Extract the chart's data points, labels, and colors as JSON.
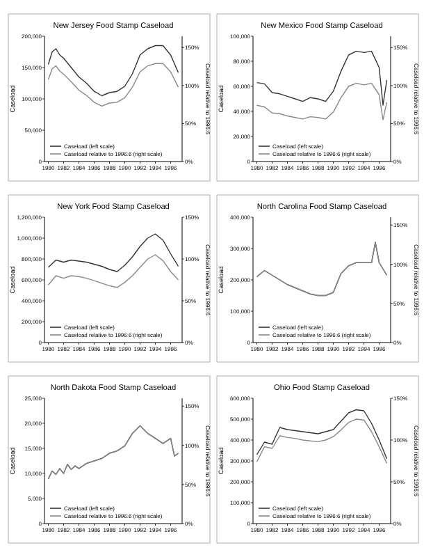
{
  "chart_data": [
    {
      "type": "line",
      "title": "New Jersey Food Stamp Caseload",
      "ylabel": "Caseload",
      "y2label": "Caseload relative to 1996:6",
      "legend": "bottom left",
      "xlim": [
        1979.5,
        1997.5
      ],
      "xticks": [
        1980,
        1982,
        1984,
        1986,
        1988,
        1990,
        1992,
        1994,
        1996
      ],
      "ylim": [
        0,
        200000
      ],
      "yticks": [
        {
          "value": 0,
          "label": "0"
        },
        {
          "value": 50000,
          "label": "50,000"
        },
        {
          "value": 100000,
          "label": "100,000"
        },
        {
          "value": 150000,
          "label": "150,000"
        },
        {
          "value": 200000,
          "label": "200,000"
        }
      ],
      "y2lim": [
        0,
        165
      ],
      "y2ticks": [
        {
          "value": 0,
          "label": "0%"
        },
        {
          "value": 50,
          "label": "50%"
        },
        {
          "value": 100,
          "label": "100%"
        },
        {
          "value": 150,
          "label": "150%"
        }
      ],
      "series": [
        {
          "name": "Caseload (left scale)",
          "color": "#333333",
          "x": [
            1980,
            1980.5,
            1981,
            1981.5,
            1982,
            1983,
            1984,
            1985,
            1986,
            1987,
            1988,
            1989,
            1990,
            1991,
            1992,
            1993,
            1994,
            1995,
            1996,
            1997
          ],
          "values": [
            155000,
            175000,
            180000,
            170000,
            165000,
            150000,
            135000,
            125000,
            112000,
            105000,
            110000,
            112000,
            120000,
            140000,
            170000,
            180000,
            185000,
            185000,
            170000,
            142000
          ]
        },
        {
          "name": "Caseload relative to 1996:6 (right scale)",
          "axis": "y2",
          "color": "#888888",
          "x": [
            1980,
            1980.5,
            1981,
            1981.5,
            1982,
            1983,
            1984,
            1985,
            1986,
            1987,
            1988,
            1989,
            1990,
            1991,
            1992,
            1993,
            1994,
            1995,
            1996,
            1997
          ],
          "values": [
            108,
            122,
            126,
            119,
            115,
            105,
            94,
            87,
            78,
            73,
            77,
            78,
            84,
            98,
            118,
            126,
            129,
            129,
            118,
            98
          ]
        }
      ]
    },
    {
      "type": "line",
      "title": "New Mexico Food Stamp Caseload",
      "ylabel": "Caseload",
      "y2label": "Caseload relative to 1996:6",
      "legend": "bottom left",
      "xlim": [
        1979.5,
        1997.5
      ],
      "xticks": [
        1980,
        1982,
        1984,
        1986,
        1988,
        1990,
        1992,
        1994,
        1996
      ],
      "ylim": [
        0,
        100000
      ],
      "yticks": [
        {
          "value": 0,
          "label": "0"
        },
        {
          "value": 20000,
          "label": "20,000"
        },
        {
          "value": 40000,
          "label": "40,000"
        },
        {
          "value": 60000,
          "label": "60,000"
        },
        {
          "value": 80000,
          "label": "80,000"
        },
        {
          "value": 100000,
          "label": "100,000"
        }
      ],
      "y2lim": [
        0,
        165
      ],
      "y2ticks": [
        {
          "value": 0,
          "label": "0%"
        },
        {
          "value": 50,
          "label": "50%"
        },
        {
          "value": 100,
          "label": "100%"
        },
        {
          "value": 150,
          "label": "150%"
        }
      ],
      "series": [
        {
          "name": "Caseload (left scale)",
          "color": "#333333",
          "x": [
            1980,
            1981,
            1982,
            1983,
            1984,
            1985,
            1986,
            1987,
            1988,
            1989,
            1990,
            1991,
            1992,
            1993,
            1994,
            1995,
            1996,
            1996.5,
            1997
          ],
          "values": [
            63000,
            62000,
            55000,
            54000,
            52000,
            50000,
            48000,
            51000,
            50000,
            48000,
            56000,
            72000,
            85000,
            88000,
            87000,
            88000,
            75000,
            45000,
            65000
          ]
        },
        {
          "name": "Caseload relative to 1996:6 (right scale)",
          "axis": "y2",
          "color": "#888888",
          "x": [
            1980,
            1981,
            1982,
            1983,
            1984,
            1985,
            1986,
            1987,
            1988,
            1989,
            1990,
            1991,
            1992,
            1993,
            1994,
            1995,
            1996,
            1996.5,
            1997
          ],
          "values": [
            74,
            72,
            64,
            63,
            60,
            58,
            56,
            59,
            58,
            56,
            65,
            84,
            99,
            103,
            101,
            103,
            88,
            55,
            78
          ]
        }
      ]
    },
    {
      "type": "line",
      "title": "New York Food Stamp Caseload",
      "ylabel": "Caseload",
      "y2label": "Caseload relative to 1996:6",
      "legend": "bottom left",
      "xlim": [
        1979.5,
        1997.5
      ],
      "xticks": [
        1980,
        1982,
        1984,
        1986,
        1988,
        1990,
        1992,
        1994,
        1996
      ],
      "ylim": [
        0,
        1200000
      ],
      "yticks": [
        {
          "value": 0,
          "label": "0"
        },
        {
          "value": 200000,
          "label": "200,000"
        },
        {
          "value": 400000,
          "label": "400,000"
        },
        {
          "value": 600000,
          "label": "600,000"
        },
        {
          "value": 800000,
          "label": "800,000"
        },
        {
          "value": 1000000,
          "label": "1,000,000"
        },
        {
          "value": 1200000,
          "label": "1,200,000"
        }
      ],
      "y2lim": [
        0,
        150
      ],
      "y2ticks": [
        {
          "value": 0,
          "label": "0%"
        },
        {
          "value": 50,
          "label": "50%"
        },
        {
          "value": 100,
          "label": "100%"
        },
        {
          "value": 150,
          "label": "150%"
        }
      ],
      "series": [
        {
          "name": "Caseload (left scale)",
          "color": "#333333",
          "x": [
            1980,
            1981,
            1982,
            1983,
            1984,
            1985,
            1986,
            1987,
            1988,
            1989,
            1990,
            1991,
            1992,
            1993,
            1994,
            1995,
            1996,
            1997
          ],
          "values": [
            720000,
            790000,
            770000,
            790000,
            780000,
            770000,
            750000,
            730000,
            700000,
            680000,
            740000,
            820000,
            920000,
            1000000,
            1040000,
            980000,
            850000,
            730000
          ]
        },
        {
          "name": "Caseload relative to 1996:6 (right scale)",
          "axis": "y2",
          "color": "#888888",
          "x": [
            1980,
            1981,
            1982,
            1983,
            1984,
            1985,
            1986,
            1987,
            1988,
            1989,
            1990,
            1991,
            1992,
            1993,
            1994,
            1995,
            1996,
            1997
          ],
          "values": [
            69,
            80,
            77,
            80,
            79,
            77,
            74,
            71,
            68,
            66,
            72,
            80,
            90,
            100,
            105,
            98,
            85,
            75
          ]
        }
      ]
    },
    {
      "type": "line",
      "title": "North Carolina Food Stamp Caseload",
      "ylabel": "Caseload",
      "y2label": "Caseload relative to 1996:6",
      "legend": "bottom left",
      "xlim": [
        1979.5,
        1997.5
      ],
      "xticks": [
        1980,
        1982,
        1984,
        1986,
        1988,
        1990,
        1992,
        1994,
        1996
      ],
      "ylim": [
        0,
        400000
      ],
      "yticks": [
        {
          "value": 0,
          "label": "0"
        },
        {
          "value": 100000,
          "label": "100,000"
        },
        {
          "value": 200000,
          "label": "200,000"
        },
        {
          "value": 300000,
          "label": "300,000"
        },
        {
          "value": 400000,
          "label": "400,000"
        }
      ],
      "y2lim": [
        0,
        160
      ],
      "y2ticks": [
        {
          "value": 0,
          "label": "0%"
        },
        {
          "value": 50,
          "label": "50%"
        },
        {
          "value": 100,
          "label": "100%"
        },
        {
          "value": 150,
          "label": "150%"
        }
      ],
      "series": [
        {
          "name": "Caseload (left scale)",
          "color": "#333333",
          "x": [
            1980,
            1981,
            1982,
            1983,
            1984,
            1985,
            1986,
            1987,
            1988,
            1989,
            1990,
            1991,
            1992,
            1993,
            1994,
            1995,
            1995.5,
            1996,
            1997
          ],
          "values": [
            210000,
            230000,
            215000,
            200000,
            185000,
            175000,
            165000,
            155000,
            150000,
            150000,
            160000,
            220000,
            245000,
            255000,
            255000,
            255000,
            320000,
            255000,
            215000
          ]
        },
        {
          "name": "Caseload relative to 1996:6 (right scale)",
          "axis": "y2",
          "color": "#888888",
          "x": [
            1980,
            1981,
            1982,
            1983,
            1984,
            1985,
            1986,
            1987,
            1988,
            1989,
            1990,
            1991,
            1992,
            1993,
            1994,
            1995,
            1995.5,
            1996,
            1997
          ],
          "values": [
            84,
            92,
            86,
            80,
            74,
            70,
            66,
            62,
            60,
            60,
            64,
            88,
            98,
            102,
            102,
            102,
            128,
            102,
            86
          ]
        }
      ]
    },
    {
      "type": "line",
      "title": "North Dakota Food Stamp Caseload",
      "ylabel": "Caseload",
      "y2label": "Caseload relative to 1996:6",
      "legend": "bottom left",
      "xlim": [
        1979.5,
        1997.5
      ],
      "xticks": [
        1980,
        1982,
        1984,
        1986,
        1988,
        1990,
        1992,
        1994,
        1996
      ],
      "ylim": [
        0,
        25000
      ],
      "yticks": [
        {
          "value": 0,
          "label": "0"
        },
        {
          "value": 5000,
          "label": "5,000"
        },
        {
          "value": 10000,
          "label": "10,000"
        },
        {
          "value": 15000,
          "label": "15,000"
        },
        {
          "value": 20000,
          "label": "20,000"
        },
        {
          "value": 25000,
          "label": "25,000"
        }
      ],
      "y2lim": [
        0,
        160
      ],
      "y2ticks": [
        {
          "value": 0,
          "label": "0%"
        },
        {
          "value": 50,
          "label": "50%"
        },
        {
          "value": 100,
          "label": "100%"
        },
        {
          "value": 150,
          "label": "150%"
        }
      ],
      "series": [
        {
          "name": "Caseload (left scale)",
          "color": "#333333",
          "x": [
            1980,
            1980.5,
            1981,
            1981.5,
            1982,
            1982.5,
            1983,
            1983.5,
            1984,
            1985,
            1986,
            1987,
            1988,
            1989,
            1990,
            1991,
            1992,
            1993,
            1994,
            1995,
            1996,
            1996.5,
            1997
          ],
          "values": [
            8900,
            10500,
            9800,
            11000,
            10000,
            11800,
            10800,
            11500,
            11000,
            12000,
            12500,
            13000,
            14000,
            14500,
            15500,
            18000,
            19500,
            18000,
            17000,
            16000,
            17000,
            13500,
            14000
          ]
        },
        {
          "name": "Caseload relative to 1996:6 (right scale)",
          "axis": "y2",
          "color": "#888888",
          "x": [
            1980,
            1980.5,
            1981,
            1981.5,
            1982,
            1982.5,
            1983,
            1983.5,
            1984,
            1985,
            1986,
            1987,
            1988,
            1989,
            1990,
            1991,
            1992,
            1993,
            1994,
            1995,
            1996,
            1996.5,
            1997
          ],
          "values": [
            57,
            67,
            63,
            70,
            64,
            75,
            69,
            74,
            70,
            77,
            80,
            83,
            90,
            93,
            99,
            115,
            125,
            115,
            109,
            102,
            109,
            86,
            90
          ]
        }
      ]
    },
    {
      "type": "line",
      "title": "Ohio Food Stamp Caseload",
      "ylabel": "Caseload",
      "y2label": "Caseload relative to 1996:6",
      "legend": "bottom left",
      "xlim": [
        1979.5,
        1997.5
      ],
      "xticks": [
        1980,
        1982,
        1984,
        1986,
        1988,
        1990,
        1992,
        1994,
        1996
      ],
      "ylim": [
        0,
        600000
      ],
      "yticks": [
        {
          "value": 0,
          "label": "0"
        },
        {
          "value": 100000,
          "label": "100,000"
        },
        {
          "value": 200000,
          "label": "200,000"
        },
        {
          "value": 300000,
          "label": "300,000"
        },
        {
          "value": 400000,
          "label": "400,000"
        },
        {
          "value": 500000,
          "label": "500,000"
        },
        {
          "value": 600000,
          "label": "600,000"
        }
      ],
      "y2lim": [
        0,
        150
      ],
      "y2ticks": [
        {
          "value": 0,
          "label": "0%"
        },
        {
          "value": 50,
          "label": "50%"
        },
        {
          "value": 100,
          "label": "100%"
        },
        {
          "value": 150,
          "label": "150%"
        }
      ],
      "series": [
        {
          "name": "Caseload (left scale)",
          "color": "#333333",
          "x": [
            1980,
            1981,
            1982,
            1983,
            1984,
            1985,
            1986,
            1987,
            1988,
            1989,
            1990,
            1991,
            1992,
            1993,
            1994,
            1995,
            1996,
            1997
          ],
          "values": [
            330000,
            390000,
            380000,
            460000,
            450000,
            445000,
            440000,
            435000,
            430000,
            440000,
            450000,
            490000,
            530000,
            545000,
            540000,
            480000,
            400000,
            310000
          ]
        },
        {
          "name": "Caseload relative to 1996:6 (right scale)",
          "axis": "y2",
          "color": "#888888",
          "x": [
            1980,
            1981,
            1982,
            1983,
            1984,
            1985,
            1986,
            1987,
            1988,
            1989,
            1990,
            1991,
            1992,
            1993,
            1994,
            1995,
            1996,
            1997
          ],
          "values": [
            74,
            92,
            90,
            105,
            103,
            102,
            100,
            99,
            98,
            100,
            104,
            112,
            121,
            125,
            124,
            110,
            92,
            72
          ]
        }
      ]
    }
  ]
}
